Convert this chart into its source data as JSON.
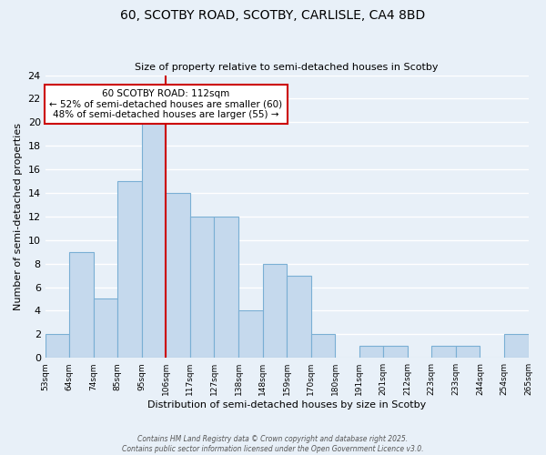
{
  "title": "60, SCOTBY ROAD, SCOTBY, CARLISLE, CA4 8BD",
  "subtitle": "Size of property relative to semi-detached houses in Scotby",
  "xlabel": "Distribution of semi-detached houses by size in Scotby",
  "ylabel": "Number of semi-detached properties",
  "bin_edges": [
    "53sqm",
    "64sqm",
    "74sqm",
    "85sqm",
    "95sqm",
    "106sqm",
    "117sqm",
    "127sqm",
    "138sqm",
    "148sqm",
    "159sqm",
    "170sqm",
    "180sqm",
    "191sqm",
    "201sqm",
    "212sqm",
    "223sqm",
    "233sqm",
    "244sqm",
    "254sqm",
    "265sqm"
  ],
  "values": [
    2,
    9,
    5,
    15,
    20,
    14,
    12,
    12,
    4,
    8,
    7,
    2,
    0,
    1,
    1,
    0,
    1,
    1,
    0,
    2
  ],
  "bar_color": "#c5d9ed",
  "bar_edge_color": "#7aafd4",
  "background_color": "#e8f0f8",
  "grid_color": "#ffffff",
  "ylim": [
    0,
    24
  ],
  "yticks": [
    0,
    2,
    4,
    6,
    8,
    10,
    12,
    14,
    16,
    18,
    20,
    22,
    24
  ],
  "vline_color": "#cc0000",
  "vline_position": 5,
  "annotation_title": "60 SCOTBY ROAD: 112sqm",
  "annotation_line1": "← 52% of semi-detached houses are smaller (60)",
  "annotation_line2": "48% of semi-detached houses are larger (55) →",
  "annotation_box_color": "#ffffff",
  "annotation_box_edge": "#cc0000",
  "footer1": "Contains HM Land Registry data © Crown copyright and database right 2025.",
  "footer2": "Contains public sector information licensed under the Open Government Licence v3.0."
}
